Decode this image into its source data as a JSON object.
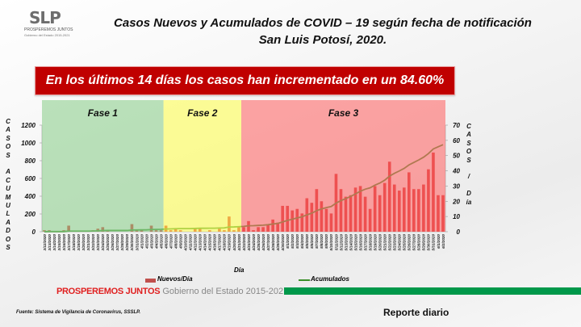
{
  "logo": {
    "text": "SLP",
    "line1": "PROSPEREMOS JUNTOS",
    "line2": "Gobierno del Estado 2015-2021"
  },
  "title": {
    "line1": "Casos Nuevos y Acumulados de COVID – 19 según fecha de notificación",
    "line2": "San Luis Potosí, 2020."
  },
  "banner": "En los últimos 14 días los casos han incrementado en un 84.60%",
  "footer": {
    "brand_red": "PROSPEREMOS JUNTOS",
    "brand_grey": "Gobierno del Estado 2015-2021",
    "source": "Fuente: Sistema de Vigilancia de Coronavirus, SSSLP.",
    "report": "Reporte diario"
  },
  "colors": {
    "bars": "#d42a2a",
    "line": "#3b8f2a",
    "fase1": "#8fd08f",
    "fase2": "#ffff55",
    "fase3": "#ff6b6b",
    "banner": "#c00000",
    "footer_bar": "#00984a"
  },
  "chart_data": {
    "type": "bar+line",
    "xlabel": "Día",
    "ylabel_left": "CASOS ACUMULADOS",
    "ylabel_right": "CASOS / Día",
    "ylim_left": [
      0,
      1200
    ],
    "yticks_left": [
      "0",
      "200",
      "400",
      "600",
      "800",
      "1000",
      "1200"
    ],
    "ylim_right": [
      0,
      70
    ],
    "yticks_right": [
      "0",
      "10",
      "20",
      "30",
      "40",
      "50",
      "60",
      "70"
    ],
    "phases": [
      {
        "label": "Fase 1",
        "start": "3/12/2020",
        "end": "4/5/2020"
      },
      {
        "label": "Fase 2",
        "start": "4/6/2020",
        "end": "4/21/2020"
      },
      {
        "label": "Fase 3",
        "start": "4/22/2020",
        "end": "6/2/2020"
      }
    ],
    "legend": {
      "position": "bottom",
      "bars": "Nuevos/Día",
      "line": "Acumulados"
    },
    "categories": [
      "3/12/2020",
      "3/13/2020",
      "3/14/2020",
      "3/15/2020",
      "3/16/2020",
      "3/17/2020",
      "3/18/2020",
      "3/19/2020",
      "3/20/2020",
      "3/21/2020",
      "3/22/2020",
      "3/23/2020",
      "3/24/2020",
      "3/25/2020",
      "3/26/2020",
      "3/27/2020",
      "3/28/2020",
      "3/29/2020",
      "3/30/2020",
      "3/31/2020",
      "4/1/2020",
      "4/2/2020",
      "4/3/2020",
      "4/4/2020",
      "4/5/2020",
      "4/6/2020",
      "4/7/2020",
      "4/8/2020",
      "4/9/2020",
      "4/10/2020",
      "4/11/2020",
      "4/12/2020",
      "4/13/2020",
      "4/14/2020",
      "4/15/2020",
      "4/16/2020",
      "4/17/2020",
      "4/18/2020",
      "4/19/2020",
      "4/20/2020",
      "4/21/2020",
      "4/22/2020",
      "4/23/2020",
      "4/24/2020",
      "4/25/2020",
      "4/26/2020",
      "4/27/2020",
      "4/28/2020",
      "4/29/2020",
      "4/30/2020",
      "5/1/2020",
      "5/2/2020",
      "5/3/2020",
      "5/4/2020",
      "5/5/2020",
      "5/6/2020",
      "5/7/2020",
      "5/8/2020",
      "5/9/2020",
      "5/10/2020",
      "5/11/2020",
      "5/12/2020",
      "5/13/2020",
      "5/14/2020",
      "5/15/2020",
      "5/16/2020",
      "5/17/2020",
      "5/18/2020",
      "5/19/2020",
      "5/20/2020",
      "5/21/2020",
      "5/22/2020",
      "5/23/2020",
      "5/24/2020",
      "5/25/2020",
      "5/26/2020",
      "5/27/2020",
      "5/28/2020",
      "5/29/2020",
      "5/30/2020",
      "5/31/2020",
      "6/1/2020",
      "6/2/2020"
    ],
    "series": [
      {
        "name": "Nuevos/Día",
        "axis": "right",
        "type": "bar",
        "values": [
          1,
          1,
          0,
          0,
          1,
          4,
          0,
          0,
          0,
          0,
          1,
          2,
          3,
          1,
          0,
          0,
          0,
          0,
          5,
          1,
          1,
          0,
          4,
          1,
          1,
          4,
          1,
          2,
          1,
          0,
          0,
          2,
          2,
          0,
          1,
          0,
          2,
          1,
          10,
          1,
          3,
          3,
          7,
          1,
          3,
          3,
          5,
          8,
          6,
          17,
          17,
          14,
          15,
          12,
          22,
          19,
          28,
          20,
          15,
          12,
          38,
          28,
          23,
          24,
          29,
          30,
          23,
          15,
          30,
          24,
          32,
          46,
          31,
          27,
          29,
          39,
          28,
          28,
          31,
          41,
          52,
          24,
          24
        ]
      },
      {
        "name": "Acumulados",
        "axis": "left",
        "type": "line",
        "values": [
          1,
          2,
          2,
          2,
          3,
          7,
          7,
          7,
          7,
          7,
          8,
          10,
          13,
          14,
          14,
          14,
          14,
          14,
          19,
          20,
          21,
          21,
          25,
          26,
          27,
          31,
          32,
          34,
          35,
          35,
          35,
          37,
          39,
          39,
          40,
          40,
          42,
          43,
          53,
          54,
          57,
          60,
          67,
          68,
          71,
          74,
          79,
          87,
          93,
          110,
          127,
          141,
          156,
          168,
          190,
          209,
          237,
          257,
          272,
          284,
          322,
          350,
          373,
          397,
          426,
          456,
          479,
          494,
          524,
          548,
          580,
          626,
          657,
          684,
          713,
          752,
          780,
          808,
          839,
          880,
          932,
          956,
          980
        ]
      }
    ]
  }
}
